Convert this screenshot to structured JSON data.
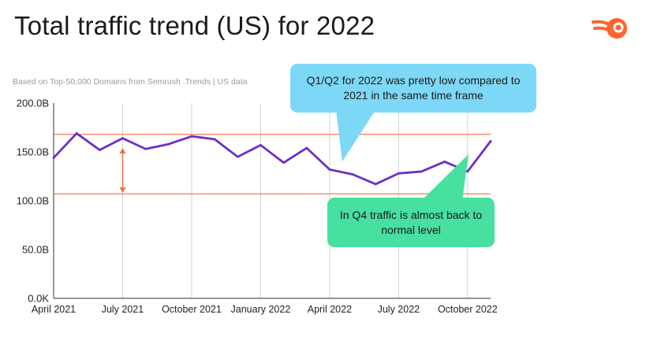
{
  "slide": {
    "title": "Total traffic trend (US) for 2022",
    "logo_icon": "semrush-logo-icon",
    "accent_color": "#ff642d"
  },
  "chart_data": {
    "type": "line",
    "subtitle": "Based on Top-50,000 Domains from Semrush .Trends | US data",
    "xlabel": "",
    "ylabel": "",
    "ylim": [
      0,
      200
    ],
    "y_unit": "B",
    "y_ticks": [
      "0.0K",
      "50.0B",
      "100.0B",
      "150.0B",
      "200.0B"
    ],
    "y_tick_values": [
      0,
      50,
      100,
      150,
      200
    ],
    "x_ticks": [
      "April 2021",
      "July 2021",
      "October 2021",
      "January 2022",
      "April 2022",
      "July 2022",
      "October 2022"
    ],
    "x_tick_indices": [
      0,
      3,
      6,
      9,
      12,
      15,
      18
    ],
    "x": [
      "2021-04",
      "2021-05",
      "2021-06",
      "2021-07",
      "2021-08",
      "2021-09",
      "2021-10",
      "2021-11",
      "2021-12",
      "2022-01",
      "2022-02",
      "2022-03",
      "2022-04",
      "2022-05",
      "2022-06",
      "2022-07",
      "2022-08",
      "2022-09",
      "2022-10",
      "2022-11"
    ],
    "series": [
      {
        "name": "",
        "color": "#6d2fc6",
        "values": [
          144,
          169,
          152,
          164,
          153,
          158,
          166,
          163,
          145,
          157,
          139,
          154,
          132,
          127,
          117,
          128,
          130,
          140,
          130,
          161
        ]
      }
    ],
    "reference_lines": [
      {
        "y": 168,
        "color": "#f07048"
      },
      {
        "y": 107,
        "color": "#f07048"
      }
    ],
    "range_arrow": {
      "x_index": 3,
      "from": 154,
      "to": 108,
      "color": "#f07048"
    },
    "grid": "vertical",
    "gridline_indices": [
      3,
      6,
      9,
      12,
      15,
      18
    ],
    "annotations": [
      {
        "id": "q1q2",
        "text": "Q1/Q2 for 2022 was pretty low compared to 2021 in the same time frame",
        "color": "#7dd8f7"
      },
      {
        "id": "q4",
        "text": "In Q4 traffic is almost back to normal level",
        "color": "#47e0a0"
      }
    ]
  }
}
